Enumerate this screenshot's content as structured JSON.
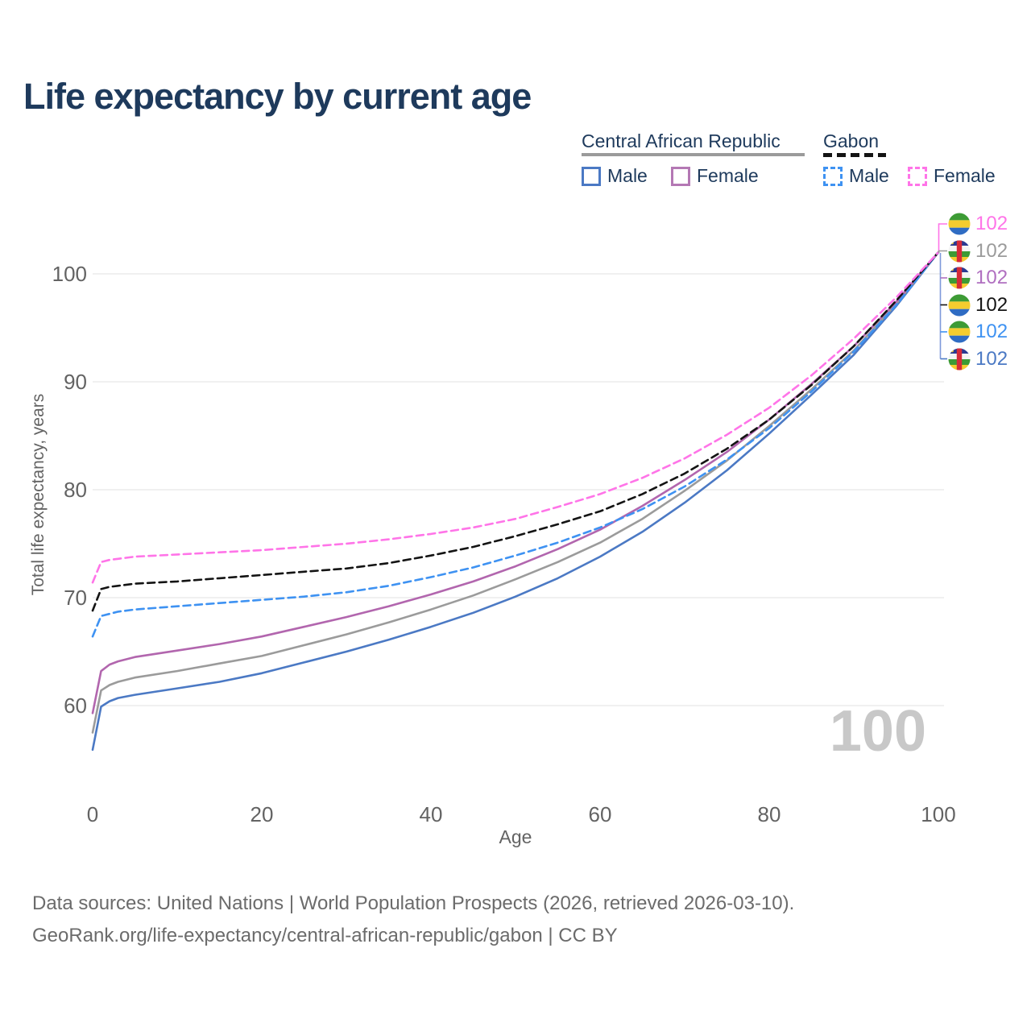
{
  "title": "Life expectancy by current age",
  "legend": {
    "car": {
      "label": "Central African Republic",
      "male": "Male",
      "female": "Female"
    },
    "gabon": {
      "label": "Gabon",
      "male": "Male",
      "female": "Female"
    }
  },
  "y_axis": {
    "title": "Total life expectancy, years",
    "ticks": [
      "100",
      "90",
      "80",
      "70",
      "60"
    ]
  },
  "x_axis": {
    "title": "Age",
    "ticks": [
      "0",
      "20",
      "40",
      "60",
      "80",
      "100"
    ]
  },
  "watermark": "100",
  "footer": {
    "line1": "Data sources: United Nations | World Population Prospects (2026, retrieved 2026-03-10).",
    "line2": "GeoRank.org/life-expectancy/central-african-republic/gabon | CC BY"
  },
  "colors": {
    "title_text": "#1e3a5c",
    "car_male": "#4b79c4",
    "car_female": "#b266ae",
    "car_total": "#9b9b9b",
    "gabon_male": "#3e92f2",
    "gabon_female": "#ff74e8",
    "gabon_total": "#141414",
    "gridline": "#ececec",
    "leader_bracket": "#7e99da"
  },
  "end_labels": [
    {
      "series": "Gabon Female",
      "flag": "gabon-flag-icon",
      "value": "102",
      "color": "#ff74e8"
    },
    {
      "series": "Central African Republic Both sexes",
      "flag": "car-flag-icon",
      "value": "102",
      "color": "#9b9b9b"
    },
    {
      "series": "Central African Republic Female",
      "flag": "car-flag-icon",
      "value": "102",
      "color": "#b06fc0"
    },
    {
      "series": "Gabon Both sexes",
      "flag": "gabon-flag-icon",
      "value": "102",
      "color": "#141414"
    },
    {
      "series": "Gabon Male",
      "flag": "gabon-flag-icon",
      "value": "102",
      "color": "#3e92f2"
    },
    {
      "series": "Central African Republic Male",
      "flag": "car-flag-icon",
      "value": "102",
      "color": "#4b79c4"
    }
  ],
  "chart_data": {
    "type": "line",
    "title": "Life expectancy by current age",
    "xlabel": "Age",
    "ylabel": "Total life expectancy, years",
    "xlim": [
      0,
      100
    ],
    "ylim": [
      55,
      102
    ],
    "grid": "horizontal-only",
    "y_gridlines": [
      60,
      70,
      80,
      90,
      100
    ],
    "x": [
      0,
      1,
      2,
      3,
      5,
      10,
      15,
      20,
      25,
      30,
      35,
      40,
      45,
      50,
      55,
      60,
      65,
      70,
      75,
      80,
      85,
      90,
      95,
      100
    ],
    "series": [
      {
        "id": "car-male",
        "name": "Central African Republic Male",
        "style": "solid",
        "color": "#4b79c4",
        "values": [
          55.9,
          59.9,
          60.4,
          60.7,
          61.0,
          61.6,
          62.2,
          63.0,
          64.0,
          65.0,
          66.1,
          67.3,
          68.6,
          70.1,
          71.8,
          73.8,
          76.1,
          78.8,
          81.8,
          85.2,
          88.8,
          92.5,
          97.0,
          102
        ]
      },
      {
        "id": "car-total",
        "name": "Central African Republic Both sexes",
        "style": "solid",
        "color": "#9b9b9b",
        "values": [
          57.5,
          61.4,
          61.9,
          62.2,
          62.6,
          63.2,
          63.9,
          64.6,
          65.6,
          66.6,
          67.7,
          68.9,
          70.2,
          71.7,
          73.3,
          75.1,
          77.3,
          79.9,
          82.7,
          85.9,
          89.3,
          92.9,
          97.2,
          102
        ]
      },
      {
        "id": "car-female",
        "name": "Central African Republic Female",
        "style": "solid",
        "color": "#b266ae",
        "values": [
          59.3,
          63.2,
          63.8,
          64.1,
          64.5,
          65.1,
          65.7,
          66.4,
          67.3,
          68.2,
          69.2,
          70.3,
          71.5,
          72.9,
          74.5,
          76.3,
          78.5,
          80.9,
          83.5,
          86.5,
          89.8,
          93.3,
          97.4,
          102
        ]
      },
      {
        "id": "gabon-male",
        "name": "Gabon Male",
        "style": "dashed",
        "color": "#3e92f2",
        "values": [
          66.4,
          68.3,
          68.5,
          68.7,
          68.9,
          69.2,
          69.5,
          69.8,
          70.1,
          70.5,
          71.1,
          71.9,
          72.8,
          73.9,
          75.1,
          76.5,
          78.2,
          80.3,
          82.8,
          85.7,
          89.1,
          92.8,
          97.1,
          102
        ]
      },
      {
        "id": "gabon-total",
        "name": "Gabon Both sexes",
        "style": "dashed",
        "color": "#141414",
        "values": [
          68.8,
          70.8,
          71.0,
          71.1,
          71.3,
          71.5,
          71.8,
          72.1,
          72.4,
          72.7,
          73.2,
          73.9,
          74.7,
          75.7,
          76.8,
          78.0,
          79.6,
          81.5,
          83.8,
          86.5,
          89.7,
          93.3,
          97.5,
          102
        ]
      },
      {
        "id": "gabon-female",
        "name": "Gabon Female",
        "style": "dashed",
        "color": "#ff74e8",
        "values": [
          71.4,
          73.3,
          73.5,
          73.6,
          73.8,
          74.0,
          74.2,
          74.4,
          74.7,
          75.0,
          75.4,
          75.9,
          76.5,
          77.3,
          78.4,
          79.6,
          81.1,
          82.9,
          85.1,
          87.6,
          90.6,
          94.0,
          97.8,
          102
        ]
      }
    ],
    "end_value_labels": [
      102,
      102,
      102,
      102,
      102,
      102
    ],
    "legend_position": "top-right"
  }
}
